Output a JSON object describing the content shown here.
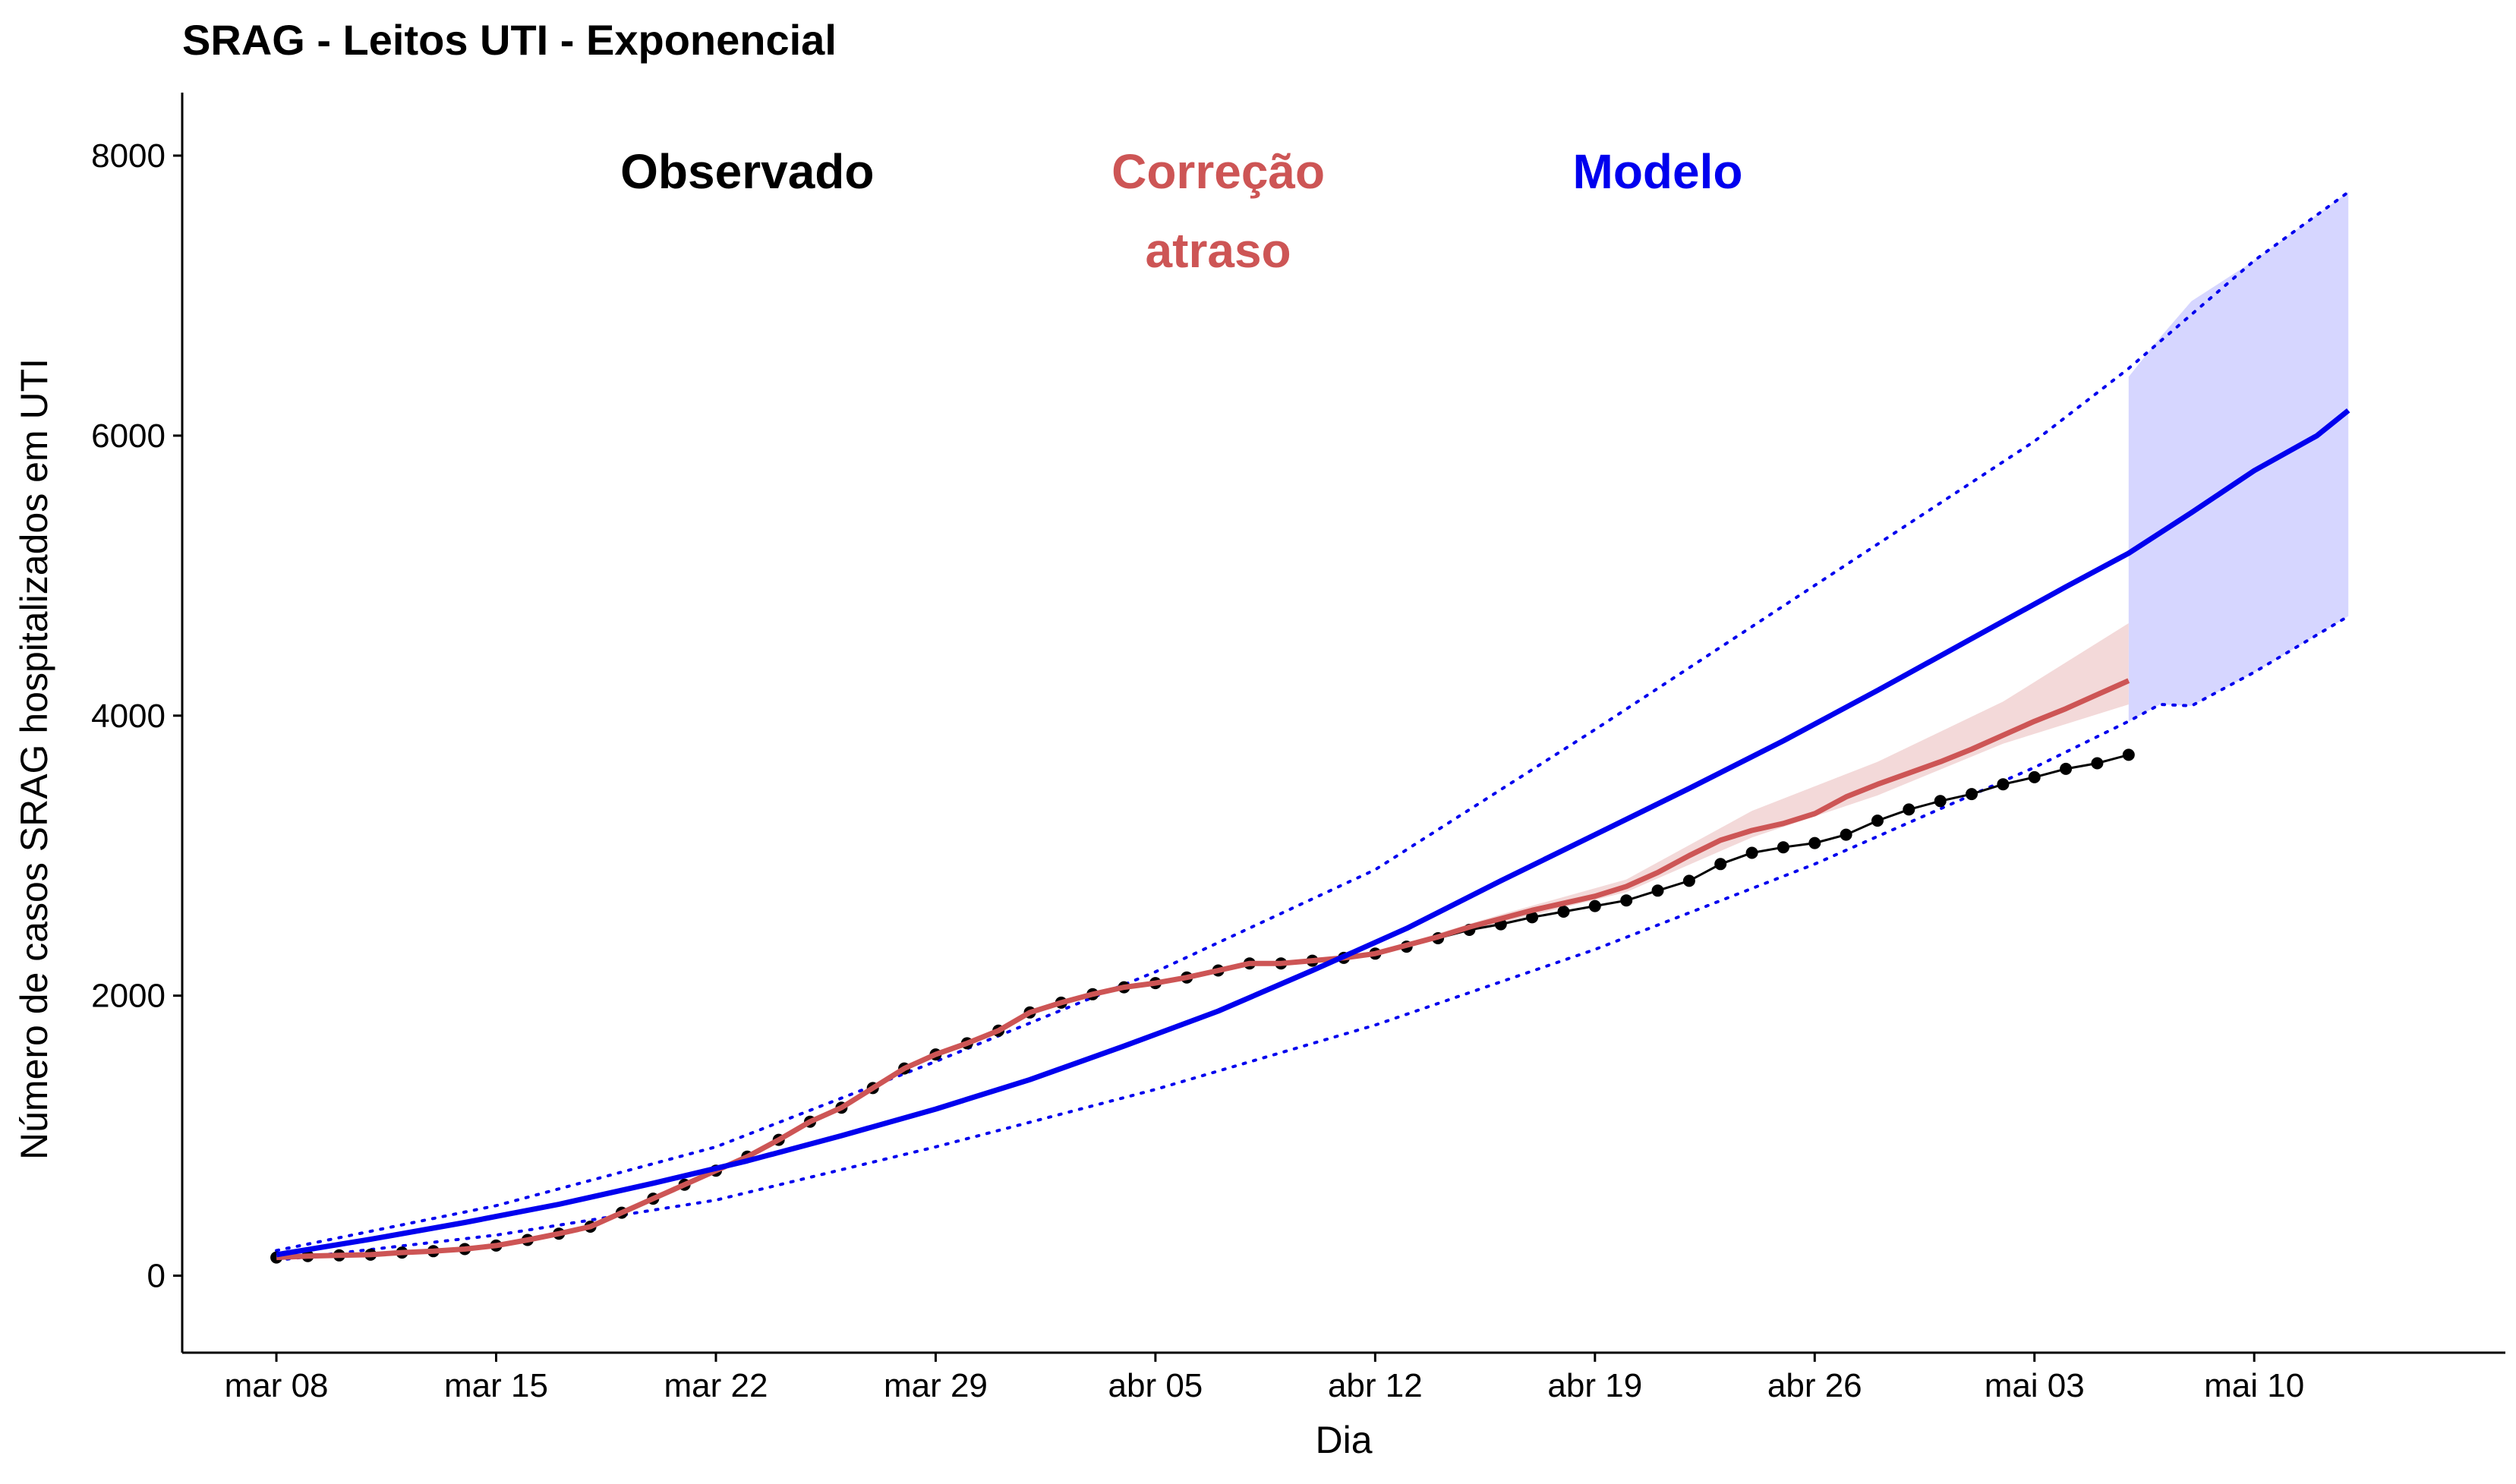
{
  "chart_data": {
    "type": "line",
    "title": "SRAG - Leitos UTI - Exponencial",
    "xlabel": "Dia",
    "ylabel": "Número de casos SRAG hospitalizados em UTI",
    "xlim": [
      "2020-03-05",
      "2020-05-18"
    ],
    "ylim": [
      -550,
      8450
    ],
    "y_ticks": [
      0,
      2000,
      4000,
      6000,
      8000
    ],
    "x_ticks": [
      {
        "date": "2020-03-08",
        "label": "mar 08"
      },
      {
        "date": "2020-03-15",
        "label": "mar 15"
      },
      {
        "date": "2020-03-22",
        "label": "mar 22"
      },
      {
        "date": "2020-03-29",
        "label": "mar 29"
      },
      {
        "date": "2020-04-05",
        "label": "abr 05"
      },
      {
        "date": "2020-04-12",
        "label": "abr 12"
      },
      {
        "date": "2020-04-19",
        "label": "abr 19"
      },
      {
        "date": "2020-04-26",
        "label": "abr 26"
      },
      {
        "date": "2020-05-03",
        "label": "mai 03"
      },
      {
        "date": "2020-05-10",
        "label": "mai 10"
      }
    ],
    "grid": false,
    "legend": "annotations inside plot (top)",
    "annotations": [
      {
        "text": [
          "Observado"
        ],
        "color": "#000000"
      },
      {
        "text": [
          "Correção",
          "atraso"
        ],
        "color": "#cd5555"
      },
      {
        "text": [
          "Modelo"
        ],
        "color": "#0000ee"
      }
    ],
    "colors": {
      "observed": "#000000",
      "corrected": "#cd5555",
      "corrected_band": "#f3d9d9",
      "model": "#0000ee",
      "model_band": "#d6d6ff"
    },
    "series": [
      {
        "key": "observed",
        "style": "line-with-points",
        "x": [
          "2020-03-08",
          "2020-03-09",
          "2020-03-10",
          "2020-03-11",
          "2020-03-12",
          "2020-03-13",
          "2020-03-14",
          "2020-03-15",
          "2020-03-16",
          "2020-03-17",
          "2020-03-18",
          "2020-03-19",
          "2020-03-20",
          "2020-03-21",
          "2020-03-22",
          "2020-03-23",
          "2020-03-24",
          "2020-03-25",
          "2020-03-26",
          "2020-03-27",
          "2020-03-28",
          "2020-03-29",
          "2020-03-30",
          "2020-03-31",
          "2020-04-01",
          "2020-04-02",
          "2020-04-03",
          "2020-04-04",
          "2020-04-05",
          "2020-04-06",
          "2020-04-07",
          "2020-04-08",
          "2020-04-09",
          "2020-04-10",
          "2020-04-11",
          "2020-04-12",
          "2020-04-13",
          "2020-04-14",
          "2020-04-15",
          "2020-04-16",
          "2020-04-17",
          "2020-04-18",
          "2020-04-19",
          "2020-04-20",
          "2020-04-21",
          "2020-04-22",
          "2020-04-23",
          "2020-04-24",
          "2020-04-25",
          "2020-04-26",
          "2020-04-27",
          "2020-04-28",
          "2020-04-29",
          "2020-04-30",
          "2020-05-01",
          "2020-05-02",
          "2020-05-03",
          "2020-05-04",
          "2020-05-05",
          "2020-05-06"
        ],
        "values": [
          130,
          140,
          145,
          150,
          165,
          175,
          190,
          215,
          255,
          300,
          350,
          450,
          550,
          650,
          750,
          850,
          970,
          1100,
          1200,
          1340,
          1480,
          1580,
          1660,
          1750,
          1880,
          1950,
          2010,
          2060,
          2090,
          2130,
          2180,
          2230,
          2230,
          2250,
          2270,
          2300,
          2350,
          2410,
          2470,
          2510,
          2560,
          2600,
          2640,
          2680,
          2750,
          2820,
          2940,
          3020,
          3060,
          3090,
          3150,
          3250,
          3330,
          3390,
          3440,
          3510,
          3560,
          3620,
          3660,
          3720
        ]
      },
      {
        "key": "corrected",
        "style": "line",
        "x": [
          "2020-03-08",
          "2020-03-09",
          "2020-03-10",
          "2020-03-11",
          "2020-03-12",
          "2020-03-13",
          "2020-03-14",
          "2020-03-15",
          "2020-03-16",
          "2020-03-17",
          "2020-03-18",
          "2020-03-19",
          "2020-03-20",
          "2020-03-21",
          "2020-03-22",
          "2020-03-23",
          "2020-03-24",
          "2020-03-25",
          "2020-03-26",
          "2020-03-27",
          "2020-03-28",
          "2020-03-29",
          "2020-03-30",
          "2020-03-31",
          "2020-04-01",
          "2020-04-02",
          "2020-04-03",
          "2020-04-04",
          "2020-04-05",
          "2020-04-06",
          "2020-04-07",
          "2020-04-08",
          "2020-04-09",
          "2020-04-10",
          "2020-04-11",
          "2020-04-12",
          "2020-04-13",
          "2020-04-14",
          "2020-04-15",
          "2020-04-16",
          "2020-04-17",
          "2020-04-18",
          "2020-04-19",
          "2020-04-20",
          "2020-04-21",
          "2020-04-22",
          "2020-04-23",
          "2020-04-24",
          "2020-04-25",
          "2020-04-26",
          "2020-04-27",
          "2020-04-28",
          "2020-04-29",
          "2020-04-30",
          "2020-05-01",
          "2020-05-02",
          "2020-05-03",
          "2020-05-04",
          "2020-05-05",
          "2020-05-06"
        ],
        "values": [
          130,
          140,
          145,
          150,
          165,
          175,
          190,
          215,
          255,
          300,
          350,
          450,
          550,
          650,
          750,
          850,
          970,
          1100,
          1200,
          1340,
          1480,
          1580,
          1660,
          1750,
          1880,
          1950,
          2010,
          2060,
          2090,
          2130,
          2180,
          2230,
          2230,
          2250,
          2270,
          2300,
          2360,
          2420,
          2490,
          2550,
          2610,
          2660,
          2710,
          2780,
          2880,
          3000,
          3110,
          3180,
          3230,
          3300,
          3420,
          3510,
          3590,
          3670,
          3760,
          3860,
          3960,
          4050,
          4150,
          4250
        ]
      },
      {
        "key": "corrected_ci",
        "style": "band",
        "x": [
          "2020-04-12",
          "2020-04-16",
          "2020-04-20",
          "2020-04-24",
          "2020-04-28",
          "2020-05-02",
          "2020-05-06"
        ],
        "lower": [
          2300,
          2520,
          2740,
          3130,
          3430,
          3800,
          4080
        ],
        "upper": [
          2310,
          2580,
          2830,
          3320,
          3670,
          4100,
          4660
        ]
      },
      {
        "key": "model",
        "style": "line",
        "x": [
          "2020-03-08",
          "2020-03-11",
          "2020-03-14",
          "2020-03-17",
          "2020-03-20",
          "2020-03-23",
          "2020-03-26",
          "2020-03-29",
          "2020-04-01",
          "2020-04-04",
          "2020-04-07",
          "2020-04-10",
          "2020-04-13",
          "2020-04-16",
          "2020-04-19",
          "2020-04-22",
          "2020-04-25",
          "2020-04-28",
          "2020-05-01",
          "2020-05-04",
          "2020-05-06",
          "2020-05-08",
          "2020-05-10",
          "2020-05-12",
          "2020-05-13"
        ],
        "values": [
          150,
          260,
          380,
          510,
          660,
          820,
          1000,
          1190,
          1400,
          1640,
          1890,
          2180,
          2480,
          2820,
          3150,
          3480,
          3820,
          4180,
          4550,
          4920,
          5160,
          5450,
          5750,
          6000,
          6180
        ]
      },
      {
        "key": "model_lower",
        "style": "dotted",
        "x": [
          "2020-03-08",
          "2020-03-15",
          "2020-03-22",
          "2020-03-29",
          "2020-04-05",
          "2020-04-12",
          "2020-04-19",
          "2020-04-26",
          "2020-05-03",
          "2020-05-06",
          "2020-05-07",
          "2020-05-08",
          "2020-05-10",
          "2020-05-13"
        ],
        "values": [
          110,
          290,
          540,
          920,
          1330,
          1790,
          2330,
          2940,
          3630,
          3960,
          4080,
          4070,
          4310,
          4710
        ]
      },
      {
        "key": "model_upper",
        "style": "dotted",
        "x": [
          "2020-03-08",
          "2020-03-15",
          "2020-03-22",
          "2020-03-29",
          "2020-04-05",
          "2020-04-12",
          "2020-04-19",
          "2020-04-26",
          "2020-05-03",
          "2020-05-06",
          "2020-05-10",
          "2020-05-13"
        ],
        "values": [
          180,
          500,
          920,
          1530,
          2170,
          2900,
          3900,
          4930,
          5960,
          6480,
          7250,
          7740
        ]
      },
      {
        "key": "model_ci",
        "style": "band",
        "x": [
          "2020-05-06",
          "2020-05-07",
          "2020-05-08",
          "2020-05-10",
          "2020-05-13"
        ],
        "lower": [
          3960,
          4080,
          4070,
          4310,
          4710
        ],
        "upper": [
          6420,
          6700,
          6960,
          7250,
          7740
        ]
      }
    ]
  }
}
